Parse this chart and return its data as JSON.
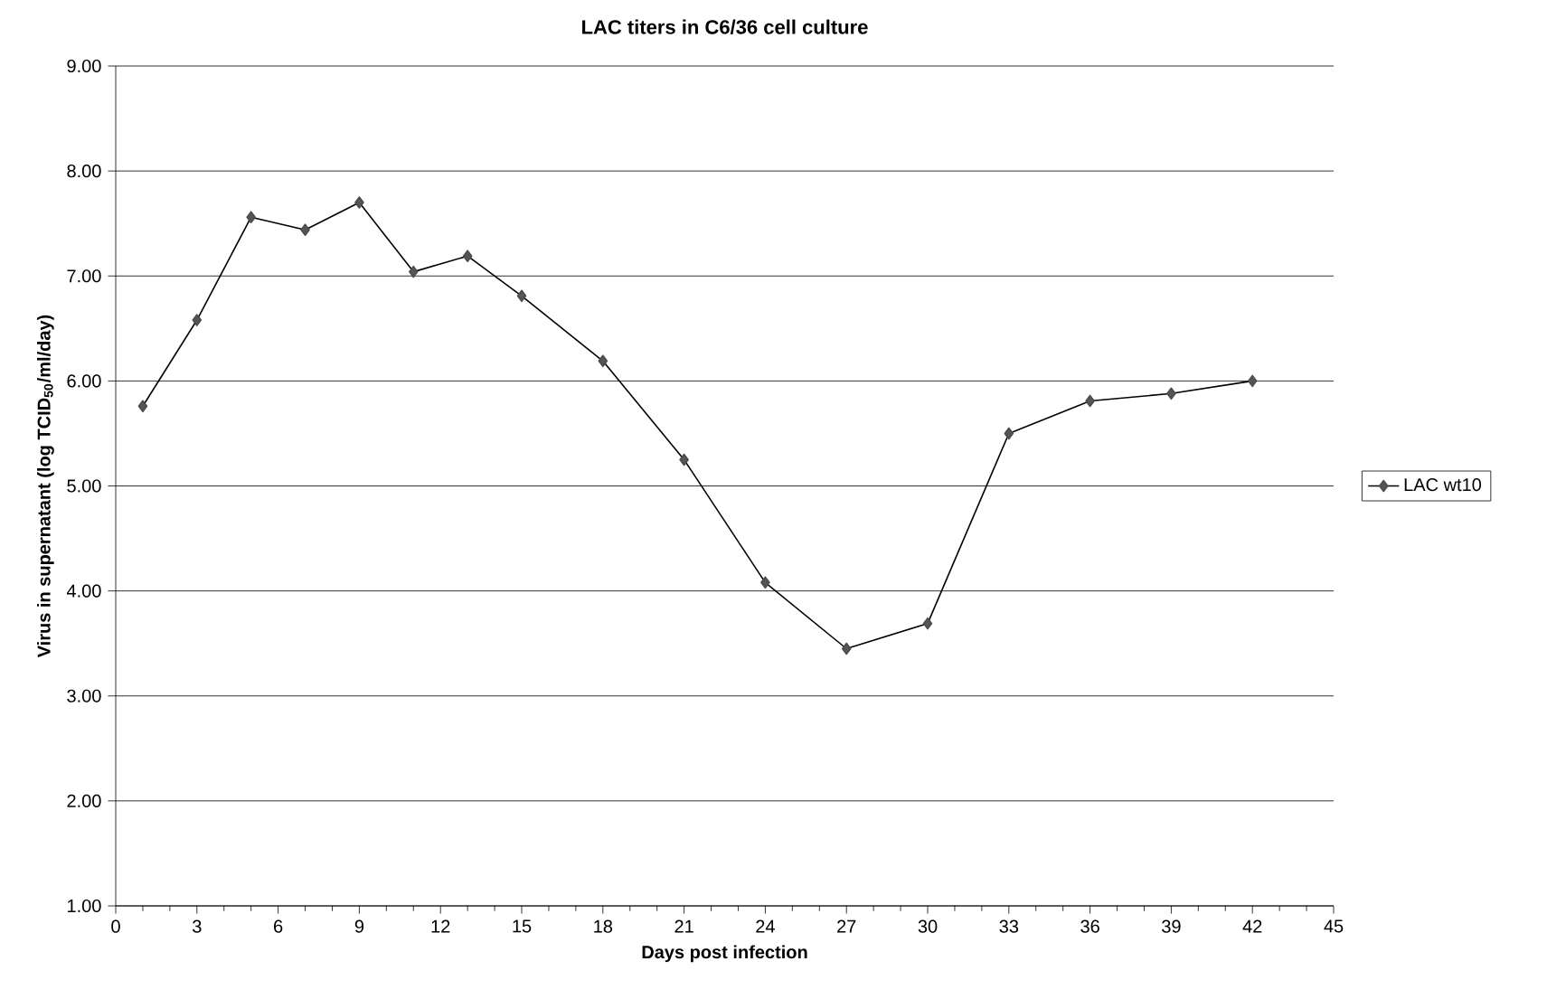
{
  "chart_data": {
    "type": "line",
    "title": "LAC titers in C6/36 cell culture",
    "xlabel": "Days post infection",
    "ylabel": "Virus in supernatant (log TCID$_{50}$/ml/day)",
    "series": [
      {
        "name": "LAC wt10",
        "color": "#555555",
        "x": [
          1,
          3,
          5,
          7,
          9,
          11,
          13,
          15,
          18,
          21,
          24,
          27,
          30,
          33,
          36,
          39,
          42
        ],
        "values": [
          5.76,
          6.58,
          7.56,
          7.44,
          7.7,
          7.04,
          7.19,
          6.81,
          6.19,
          5.25,
          4.08,
          3.45,
          3.69,
          5.5,
          5.81,
          5.88,
          6.0
        ]
      }
    ],
    "xlim": [
      0,
      45
    ],
    "xticks": [
      0,
      3,
      6,
      9,
      12,
      15,
      18,
      21,
      24,
      27,
      30,
      33,
      36,
      39,
      42,
      45
    ],
    "ylim": [
      1,
      9
    ],
    "yticks": [
      {
        "value": 1,
        "label": "1.00"
      },
      {
        "value": 2,
        "label": "2.00"
      },
      {
        "value": 3,
        "label": "3.00"
      },
      {
        "value": 4,
        "label": "4.00"
      },
      {
        "value": 5,
        "label": "5.00"
      },
      {
        "value": 6,
        "label": "6.00"
      },
      {
        "value": 7,
        "label": "7.00"
      },
      {
        "value": 8,
        "label": "8.00"
      },
      {
        "value": 9,
        "label": "9.00"
      }
    ],
    "grid": "y",
    "legend": "right",
    "marker": "diamond",
    "line_style": "solid"
  }
}
